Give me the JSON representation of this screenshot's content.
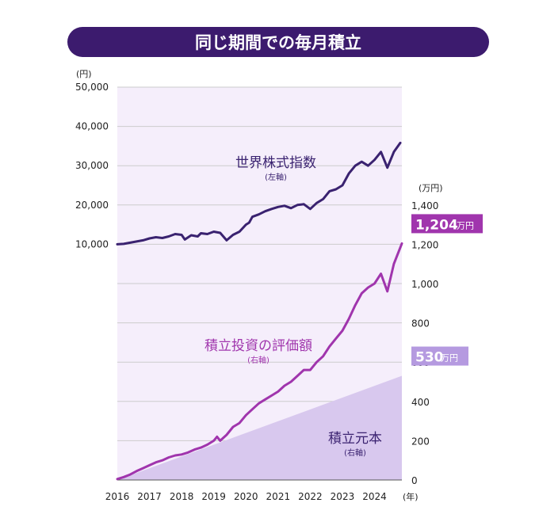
{
  "title": "同じ期間での毎月積立",
  "chart_data": {
    "type": "line",
    "title": "同じ期間での毎月積立",
    "left_axis": {
      "unit": "(円)",
      "ticks": [
        10000,
        20000,
        30000,
        40000,
        50000
      ],
      "tick_labels": [
        "10,000",
        "20,000",
        "30,000",
        "40,000",
        "50,000"
      ],
      "ylim": [
        -50000,
        50000
      ]
    },
    "right_axis": {
      "unit": "(万円)",
      "ticks": [
        0,
        200,
        400,
        600,
        800,
        1000,
        1200,
        1400
      ],
      "tick_labels": [
        "0",
        "200",
        "400",
        "600",
        "800",
        "1,000",
        "1,200",
        "1,400"
      ],
      "ylim": [
        0,
        2000
      ]
    },
    "x_axis": {
      "categories": [
        "2016",
        "2017",
        "2018",
        "2019",
        "2020",
        "2021",
        "2022",
        "2023",
        "2024"
      ],
      "unit": "(年)",
      "xlim": [
        2016.0,
        2024.85
      ]
    },
    "series": [
      {
        "name": "世界株式指数",
        "sub": "(左軸)",
        "axis": "left",
        "color": "#3a2270",
        "x": [
          2016.0,
          2016.2,
          2016.4,
          2016.6,
          2016.8,
          2017.0,
          2017.2,
          2017.4,
          2017.6,
          2017.8,
          2018.0,
          2018.1,
          2018.3,
          2018.5,
          2018.6,
          2018.8,
          2019.0,
          2019.2,
          2019.4,
          2019.6,
          2019.8,
          2020.0,
          2020.1,
          2020.2,
          2020.4,
          2020.6,
          2020.8,
          2021.0,
          2021.2,
          2021.4,
          2021.6,
          2021.8,
          2022.0,
          2022.2,
          2022.4,
          2022.6,
          2022.8,
          2023.0,
          2023.2,
          2023.4,
          2023.6,
          2023.8,
          2024.0,
          2024.2,
          2024.4,
          2024.6,
          2024.8
        ],
        "values": [
          10000,
          10100,
          10400,
          10700,
          11000,
          11500,
          11800,
          11600,
          12000,
          12600,
          12400,
          11200,
          12300,
          12000,
          12800,
          12600,
          13200,
          12900,
          11000,
          12400,
          13200,
          15000,
          15500,
          17000,
          17600,
          18400,
          19000,
          19500,
          19800,
          19200,
          20000,
          20200,
          19000,
          20500,
          21500,
          23500,
          24000,
          25000,
          28000,
          30000,
          31000,
          30000,
          31500,
          33500,
          29500,
          33500,
          35800
        ]
      },
      {
        "name": "積立投資の評価額",
        "sub": "(右軸)",
        "axis": "right",
        "color": "#a035ad",
        "x": [
          2016.0,
          2016.2,
          2016.4,
          2016.6,
          2016.8,
          2017.0,
          2017.2,
          2017.4,
          2017.6,
          2017.8,
          2018.0,
          2018.2,
          2018.4,
          2018.6,
          2018.8,
          2019.0,
          2019.1,
          2019.2,
          2019.4,
          2019.6,
          2019.8,
          2020.0,
          2020.2,
          2020.4,
          2020.6,
          2020.8,
          2021.0,
          2021.2,
          2021.4,
          2021.6,
          2021.8,
          2022.0,
          2022.2,
          2022.4,
          2022.6,
          2022.8,
          2023.0,
          2023.2,
          2023.4,
          2023.6,
          2023.8,
          2024.0,
          2024.2,
          2024.4,
          2024.6,
          2024.85
        ],
        "values": [
          5,
          15,
          28,
          45,
          60,
          75,
          90,
          100,
          115,
          125,
          130,
          140,
          155,
          165,
          180,
          200,
          220,
          200,
          230,
          270,
          290,
          330,
          360,
          390,
          410,
          430,
          450,
          480,
          500,
          530,
          560,
          560,
          600,
          630,
          680,
          720,
          760,
          820,
          890,
          950,
          980,
          1000,
          1050,
          960,
          1100,
          1204
        ]
      },
      {
        "name": "積立元本",
        "sub": "(右軸)",
        "axis": "right",
        "type": "area",
        "color": "#d8c8ee",
        "x": [
          2016.0,
          2024.85
        ],
        "values": [
          0,
          530
        ]
      }
    ],
    "annotations": [
      {
        "series": "積立投資の評価額",
        "value_text": "1,204",
        "unit_text": "万円",
        "bg": "#a035ad",
        "value": 1204
      },
      {
        "series": "積立元本",
        "value_text": "530",
        "unit_text": "万円",
        "bg": "#b59ae0",
        "value": 530
      }
    ],
    "plot_bg": "#f5eefb",
    "title_bg": "#3c1b6e",
    "grid_color": "#cccccc"
  }
}
